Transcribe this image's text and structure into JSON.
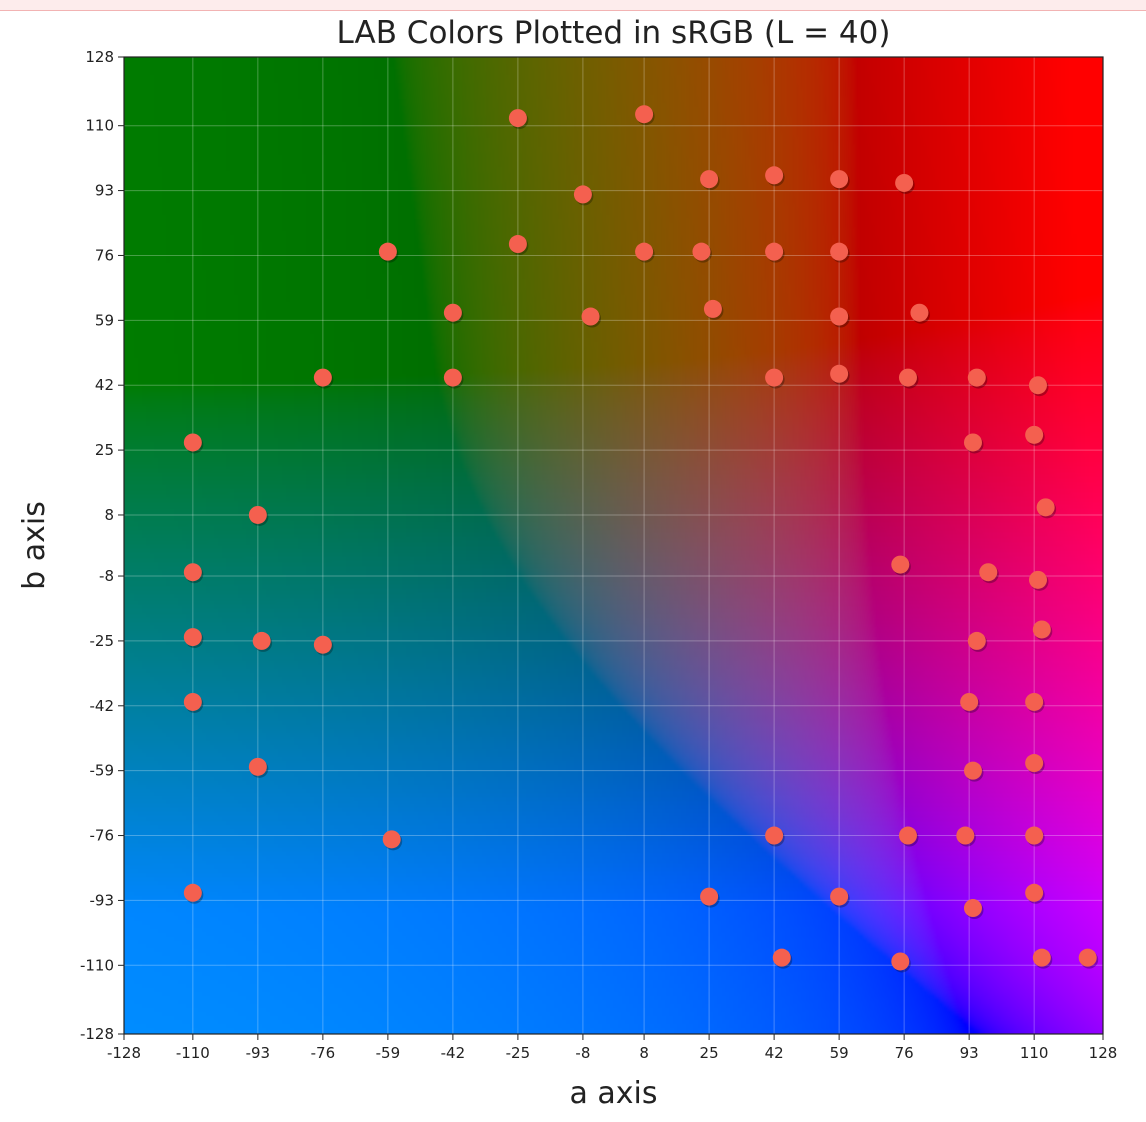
{
  "chart_data": {
    "type": "scatter",
    "title": "LAB Colors Plotted in sRGB (L = 40)",
    "xlabel": "a axis",
    "ylabel": "b axis",
    "xlim": [
      -128,
      128
    ],
    "ylim": [
      -128,
      128
    ],
    "xticks": [
      -128,
      -110,
      -93,
      -76,
      -59,
      -42,
      -25,
      -8,
      8,
      25,
      42,
      59,
      76,
      93,
      110,
      128
    ],
    "yticks": [
      -128,
      -110,
      -93,
      -76,
      -59,
      -42,
      -25,
      -8,
      8,
      25,
      42,
      59,
      76,
      93,
      110,
      128
    ],
    "grid": true,
    "background": "LAB color field at L = 40 rendered in sRGB",
    "marker_color": "#f4604f",
    "points": [
      {
        "x": -25,
        "y": 112
      },
      {
        "x": 8,
        "y": 113
      },
      {
        "x": -8,
        "y": 92
      },
      {
        "x": 25,
        "y": 96
      },
      {
        "x": 42,
        "y": 97
      },
      {
        "x": 59,
        "y": 96
      },
      {
        "x": 76,
        "y": 95
      },
      {
        "x": -59,
        "y": 77
      },
      {
        "x": -25,
        "y": 79
      },
      {
        "x": 8,
        "y": 77
      },
      {
        "x": 23,
        "y": 77
      },
      {
        "x": 42,
        "y": 77
      },
      {
        "x": 59,
        "y": 77
      },
      {
        "x": -42,
        "y": 61
      },
      {
        "x": -6,
        "y": 60
      },
      {
        "x": 26,
        "y": 62
      },
      {
        "x": 59,
        "y": 60
      },
      {
        "x": 80,
        "y": 61
      },
      {
        "x": -76,
        "y": 44
      },
      {
        "x": -42,
        "y": 44
      },
      {
        "x": 42,
        "y": 44
      },
      {
        "x": 59,
        "y": 45
      },
      {
        "x": 77,
        "y": 44
      },
      {
        "x": 95,
        "y": 44
      },
      {
        "x": 111,
        "y": 42
      },
      {
        "x": -110,
        "y": 27
      },
      {
        "x": 94,
        "y": 27
      },
      {
        "x": 110,
        "y": 29
      },
      {
        "x": -93,
        "y": 8
      },
      {
        "x": 113,
        "y": 10
      },
      {
        "x": -110,
        "y": -7
      },
      {
        "x": 75,
        "y": -5
      },
      {
        "x": 98,
        "y": -7
      },
      {
        "x": 111,
        "y": -9
      },
      {
        "x": -110,
        "y": -24
      },
      {
        "x": -92,
        "y": -25
      },
      {
        "x": -76,
        "y": -26
      },
      {
        "x": 95,
        "y": -25
      },
      {
        "x": 112,
        "y": -22
      },
      {
        "x": -110,
        "y": -41
      },
      {
        "x": 93,
        "y": -41
      },
      {
        "x": 110,
        "y": -41
      },
      {
        "x": -93,
        "y": -58
      },
      {
        "x": 94,
        "y": -59
      },
      {
        "x": 110,
        "y": -57
      },
      {
        "x": -58,
        "y": -77
      },
      {
        "x": 42,
        "y": -76
      },
      {
        "x": 77,
        "y": -76
      },
      {
        "x": 92,
        "y": -76
      },
      {
        "x": 110,
        "y": -76
      },
      {
        "x": -110,
        "y": -91
      },
      {
        "x": 25,
        "y": -92
      },
      {
        "x": 59,
        "y": -92
      },
      {
        "x": 94,
        "y": -95
      },
      {
        "x": 110,
        "y": -91
      },
      {
        "x": 44,
        "y": -108
      },
      {
        "x": 75,
        "y": -109
      },
      {
        "x": 112,
        "y": -108
      },
      {
        "x": 124,
        "y": -108
      }
    ]
  }
}
